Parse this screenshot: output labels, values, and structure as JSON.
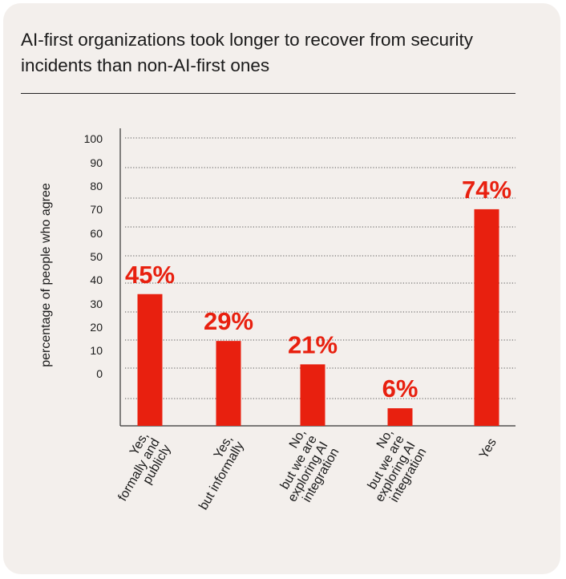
{
  "title": "AI-first organizations took longer to recover from security incidents than non-AI-first ones",
  "chart_data": {
    "type": "bar",
    "title": "AI-first organizations took longer to recover from security incidents than non-AI-first ones",
    "ylabel": "percentage of people who agree",
    "xlabel": "",
    "y_ticks": [
      "100",
      "90",
      "80",
      "70",
      "60",
      "50",
      "40",
      "30",
      "20",
      "10",
      "0"
    ],
    "categories": [
      [
        "Yes,",
        "formally and",
        "publicly"
      ],
      [
        "Yes,",
        "but informally"
      ],
      [
        "No,",
        "but we are",
        "exploring AI",
        "integration"
      ],
      [
        "No,",
        "but we are",
        "exploring AI",
        "integration"
      ],
      [
        "Yes"
      ]
    ],
    "values": [
      45,
      29,
      21,
      6,
      74
    ],
    "value_labels": [
      "45%",
      "29%",
      "21%",
      "6%",
      "74%"
    ],
    "bar_color": "#e8200f",
    "grid": true,
    "grid_style": "dotted"
  }
}
